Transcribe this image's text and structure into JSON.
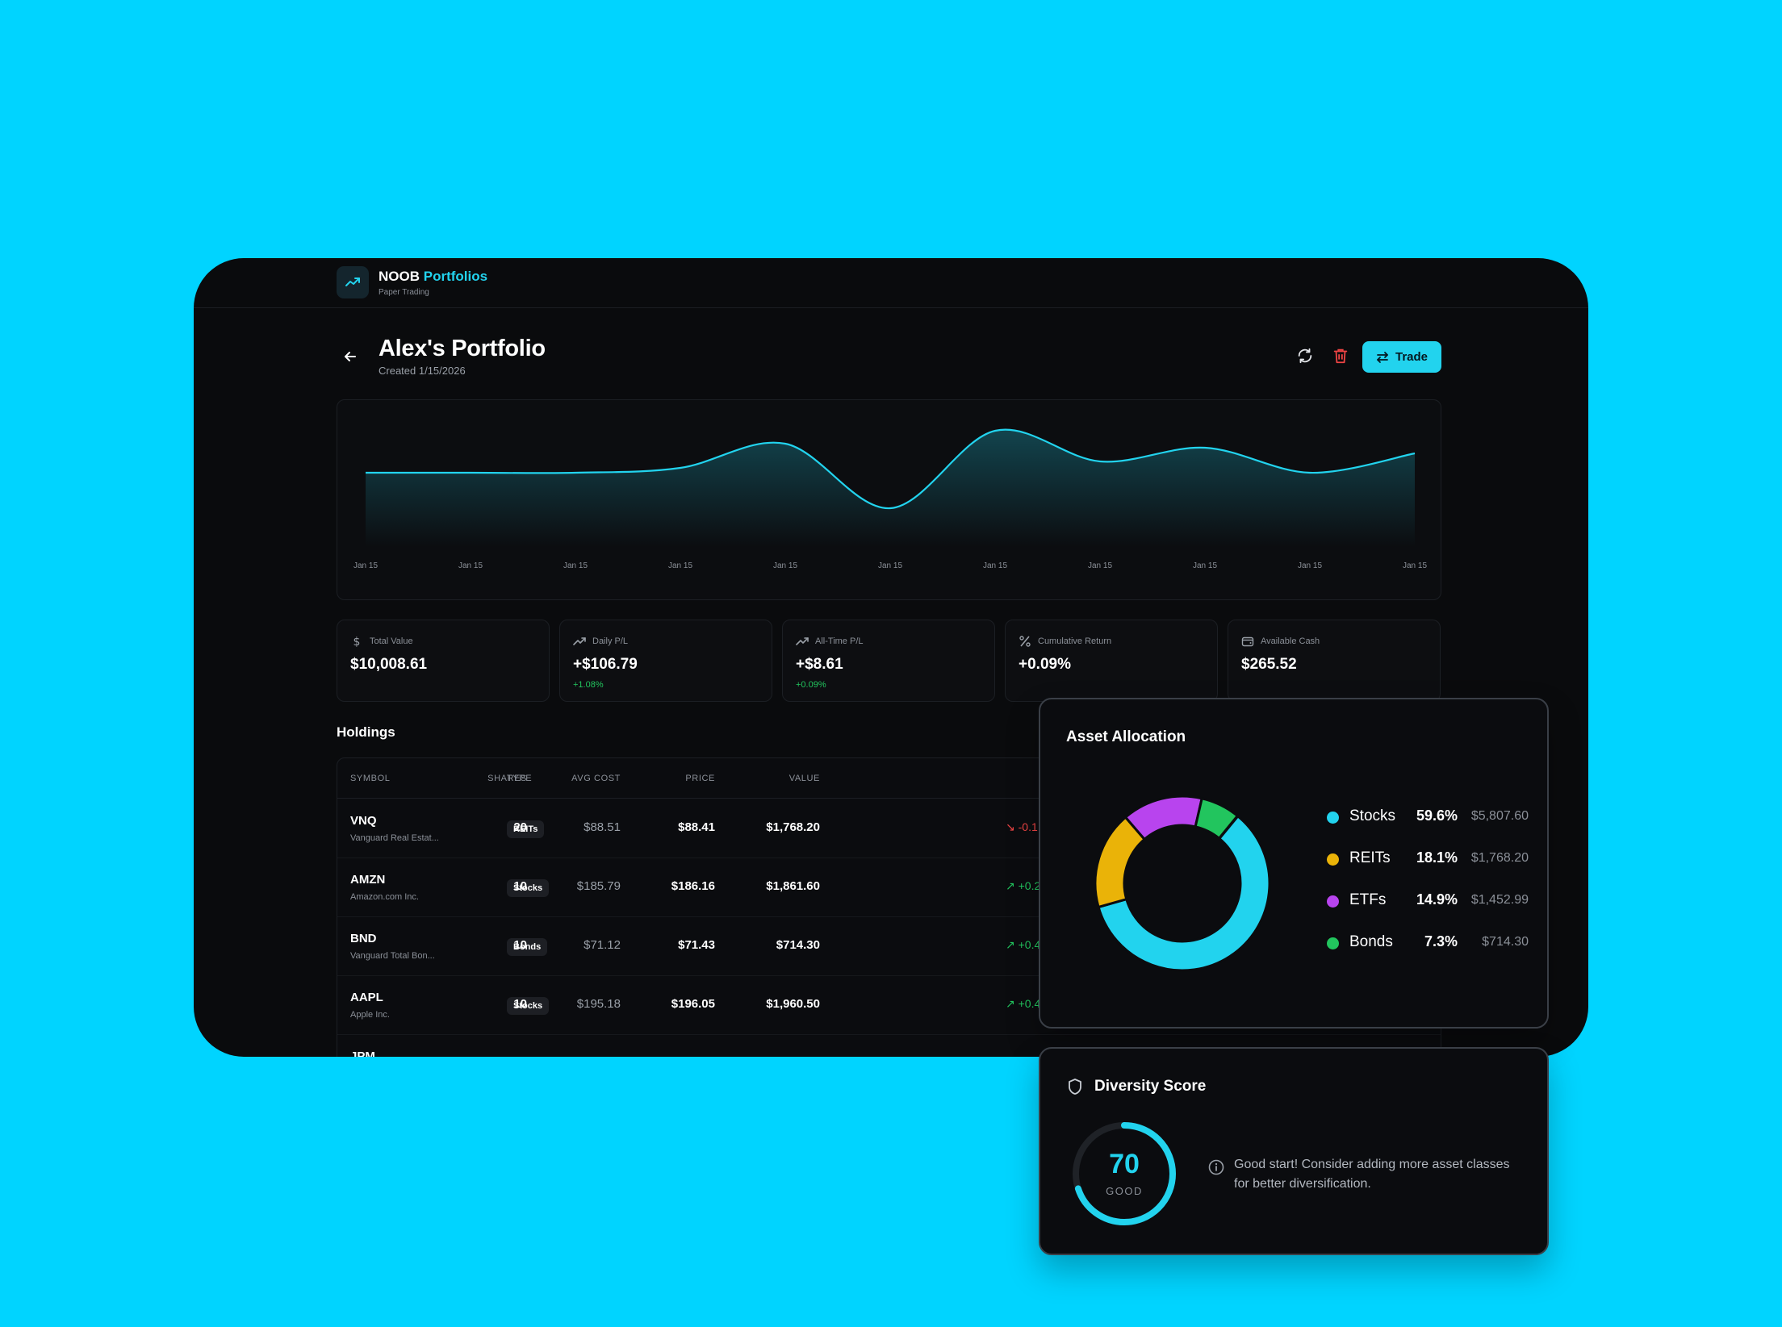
{
  "app": {
    "brand_main": "NOOB",
    "brand_accent": "Portfolios",
    "subtitle": "Paper Trading"
  },
  "portfolio": {
    "title": "Alex's Portfolio",
    "created": "Created 1/15/2026",
    "trade_label": "Trade"
  },
  "chart_data": {
    "type": "area",
    "title": "",
    "xlabel": "",
    "ylabel": "",
    "x": [
      "Jan 15",
      "Jan 15",
      "Jan 15",
      "Jan 15",
      "Jan 15",
      "Jan 15",
      "Jan 15",
      "Jan 15",
      "Jan 15",
      "Jan 15",
      "Jan 15"
    ],
    "series": [
      {
        "values": [
          10000,
          10000,
          10000,
          10006,
          10036,
          9956,
          10052,
          10014,
          10031,
          10000,
          10024
        ]
      }
    ],
    "ylim": [
      9950,
      10060
    ],
    "grid": false,
    "color": "#22d3ee"
  },
  "stats": [
    {
      "icon": "dollar-icon",
      "label": "Total Value",
      "value": "$10,008.61",
      "sub": ""
    },
    {
      "icon": "trend-up-icon",
      "label": "Daily P/L",
      "value": "+$106.79",
      "sub": "+1.08%"
    },
    {
      "icon": "trend-up-icon",
      "label": "All-Time P/L",
      "value": "+$8.61",
      "sub": "+0.09%"
    },
    {
      "icon": "percent-icon",
      "label": "Cumulative Return",
      "value": "+0.09%",
      "sub": ""
    },
    {
      "icon": "wallet-icon",
      "label": "Available Cash",
      "value": "$265.52",
      "sub": ""
    }
  ],
  "holdings": {
    "title": "Holdings",
    "columns": [
      "SYMBOL",
      "TYPE",
      "SHARES",
      "AVG COST",
      "PRICE",
      "VALUE"
    ],
    "rows": [
      {
        "symbol": "VNQ",
        "name": "Vanguard Real Estat...",
        "type": "REITs",
        "shares": "20",
        "avg": "$88.51",
        "price": "$88.41",
        "value": "$1,768.20",
        "change": "-0.1",
        "dir": "down"
      },
      {
        "symbol": "AMZN",
        "name": "Amazon.com Inc.",
        "type": "Stocks",
        "shares": "10",
        "avg": "$185.79",
        "price": "$186.16",
        "value": "$1,861.60",
        "change": "+0.2",
        "dir": "up"
      },
      {
        "symbol": "BND",
        "name": "Vanguard Total Bon...",
        "type": "Bonds",
        "shares": "10",
        "avg": "$71.12",
        "price": "$71.43",
        "value": "$714.30",
        "change": "+0.4",
        "dir": "up"
      },
      {
        "symbol": "AAPL",
        "name": "Apple Inc.",
        "type": "Stocks",
        "shares": "10",
        "avg": "$195.18",
        "price": "$196.05",
        "value": "$1,960.50",
        "change": "+0.4",
        "dir": "up"
      },
      {
        "symbol": "JPM",
        "name": "",
        "type": "",
        "shares": "",
        "avg": "",
        "price": "",
        "value": "",
        "change": "",
        "dir": "up"
      }
    ]
  },
  "allocation": {
    "title": "Asset Allocation",
    "items": [
      {
        "name": "Stocks",
        "pct": "59.6%",
        "fraction": 0.596,
        "amount": "$5,807.60",
        "color": "#22d3ee"
      },
      {
        "name": "REITs",
        "pct": "18.1%",
        "fraction": 0.181,
        "amount": "$1,768.20",
        "color": "#eab308"
      },
      {
        "name": "ETFs",
        "pct": "14.9%",
        "fraction": 0.149,
        "amount": "$1,452.99",
        "color": "#b844ee"
      },
      {
        "name": "Bonds",
        "pct": "7.3%",
        "fraction": 0.073,
        "amount": "$714.30",
        "color": "#22c55e"
      }
    ]
  },
  "diversity": {
    "title": "Diversity Score",
    "score": "70",
    "score_fraction": 0.7,
    "rating": "GOOD",
    "message": "Good start! Consider adding more asset classes for better diversification."
  }
}
